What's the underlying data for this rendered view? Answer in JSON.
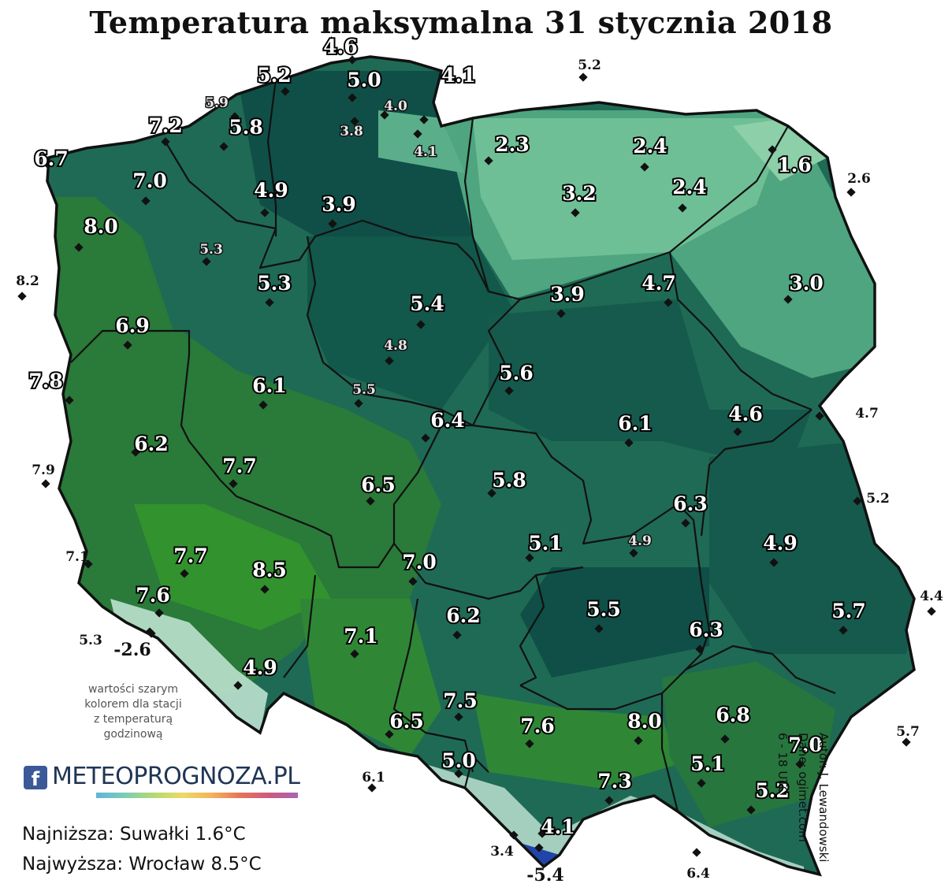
{
  "title": "Temperatura maksymalna 31 stycznia 2018",
  "note": [
    "wartości szarym",
    "kolorem dla stacji",
    "z temperaturą",
    "godzinową"
  ],
  "logo": {
    "icon_text": "f",
    "text": "METEOPROGNOZA.PL"
  },
  "stats": {
    "min": "Najniższa: Suwałki 1.6°C",
    "max": "Najwyższa: Wrocław 8.5°C"
  },
  "credits": [
    "Autor: J. Lewandowski",
    "Dane: ogimet.com",
    "6 - 18 UTC"
  ],
  "colors": {
    "dark_teal": "#0f4f47",
    "teal": "#1f6a55",
    "green": "#2a7a3a",
    "bright_green": "#32922e",
    "light_teal": "#4ea57f",
    "pale_teal": "#8ccfa8",
    "mountain": "#c6e8d8",
    "border": "#111111"
  },
  "stations": [
    {
      "v": "4.6"
    },
    {
      "v": "5.2"
    },
    {
      "v": "5.0"
    },
    {
      "v": "4.1"
    },
    {
      "v": "5.2",
      "outside": true
    },
    {
      "v": "5.9",
      "gray": true
    },
    {
      "v": "4.0",
      "gray": true
    },
    {
      "v": "7.2"
    },
    {
      "v": "5.8"
    },
    {
      "v": "3.8",
      "gray": true
    },
    {
      "v": "4.1",
      "gray": true
    },
    {
      "v": "2.3"
    },
    {
      "v": "2.4"
    },
    {
      "v": "1.6"
    },
    {
      "v": "6.7"
    },
    {
      "v": "7.0"
    },
    {
      "v": "4.9"
    },
    {
      "v": "3.9"
    },
    {
      "v": "3.2"
    },
    {
      "v": "2.4"
    },
    {
      "v": "2.6",
      "outside": true
    },
    {
      "v": "8.0"
    },
    {
      "v": "5.3",
      "gray": true
    },
    {
      "v": "8.2",
      "outside": true
    },
    {
      "v": "5.3"
    },
    {
      "v": "3.0"
    },
    {
      "v": "5.4"
    },
    {
      "v": "3.9"
    },
    {
      "v": "4.7"
    },
    {
      "v": "6.9"
    },
    {
      "v": "4.8",
      "gray": true
    },
    {
      "v": "7.8"
    },
    {
      "v": "6.1"
    },
    {
      "v": "5.5",
      "gray": true
    },
    {
      "v": "5.6"
    },
    {
      "v": "6.4"
    },
    {
      "v": "6.1"
    },
    {
      "v": "4.6"
    },
    {
      "v": "4.7",
      "outside": true
    },
    {
      "v": "6.2"
    },
    {
      "v": "7.9",
      "outside": true
    },
    {
      "v": "7.7"
    },
    {
      "v": "6.5"
    },
    {
      "v": "5.8"
    },
    {
      "v": "6.3"
    },
    {
      "v": "5.2",
      "outside": true
    },
    {
      "v": "7.1",
      "outside": true
    },
    {
      "v": "7.7"
    },
    {
      "v": "8.5"
    },
    {
      "v": "7.0"
    },
    {
      "v": "5.1"
    },
    {
      "v": "4.9",
      "gray": true
    },
    {
      "v": "4.9"
    },
    {
      "v": "7.6"
    },
    {
      "v": "5.5"
    },
    {
      "v": "5.7"
    },
    {
      "v": "4.4",
      "outside": true
    },
    {
      "v": "5.3",
      "outside": true
    },
    {
      "v": "-2.6",
      "outside": true
    },
    {
      "v": "6.2"
    },
    {
      "v": "6.3"
    },
    {
      "v": "7.1"
    },
    {
      "v": "4.9"
    },
    {
      "v": "7.5"
    },
    {
      "v": "6.5"
    },
    {
      "v": "7.6"
    },
    {
      "v": "8.0"
    },
    {
      "v": "6.8"
    },
    {
      "v": "7.0"
    },
    {
      "v": "5.0"
    },
    {
      "v": "5.1"
    },
    {
      "v": "7.3"
    },
    {
      "v": "5.2"
    },
    {
      "v": "6.1",
      "outside": true
    },
    {
      "v": "5.7",
      "outside": true
    },
    {
      "v": "4.1"
    },
    {
      "v": "3.4",
      "outside": true
    },
    {
      "v": "-5.4",
      "outside": true
    },
    {
      "v": "6.4",
      "outside": true
    }
  ]
}
